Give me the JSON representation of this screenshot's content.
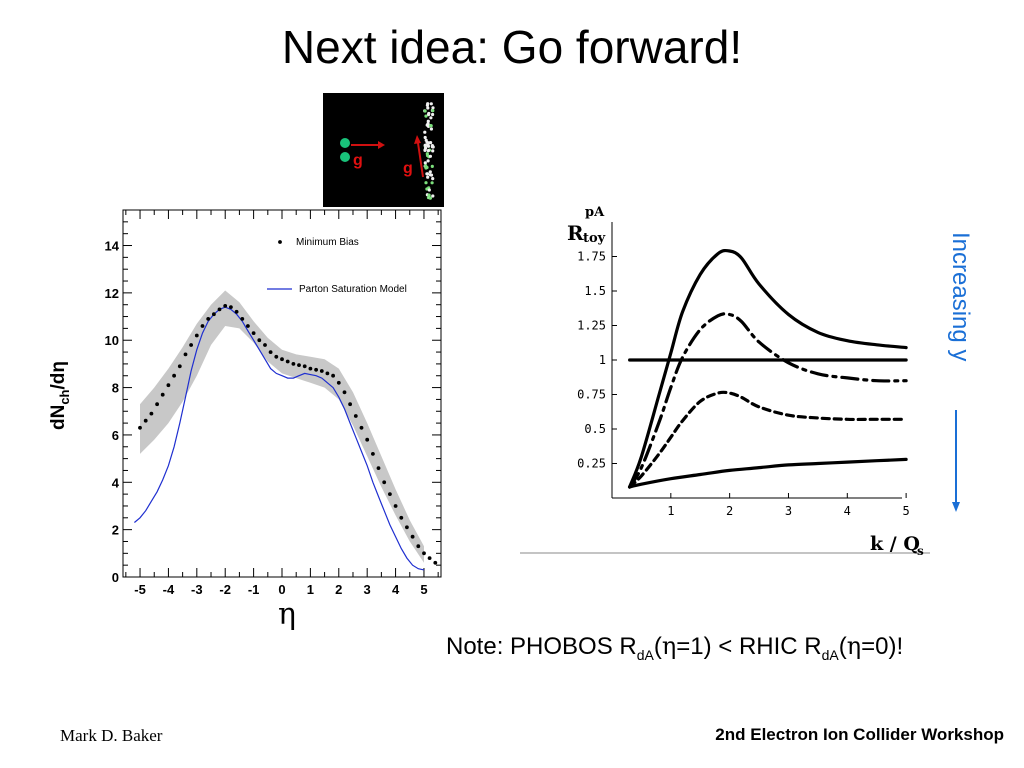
{
  "slide": {
    "title": "Next idea: Go forward!",
    "footer_left": "Mark D. Baker",
    "footer_right": "2nd Electron Ion Collider Workshop",
    "note": {
      "prefix": "Note: PHOBOS R",
      "sub1": "dA",
      "mid1": "(",
      "eta1": "η",
      "mid2": "=1) < RHIC R",
      "sub2": "dA",
      "mid3": "(",
      "eta2": "η",
      "mid4": "=0)!"
    },
    "increasing_label": "Increasing y",
    "diagram": {
      "label_left": "g",
      "label_right": "g"
    }
  },
  "chart_data": [
    {
      "type": "scatter",
      "xlabel": "η",
      "ylabel": "dN",
      "ylabel_sub": "ch",
      "ylabel_tail": "/dη",
      "xlim": [
        -5.6,
        5.6
      ],
      "ylim": [
        0,
        15.5
      ],
      "xticks": [
        "-5",
        "-4",
        "-3",
        "-2",
        "-1",
        "0",
        "1",
        "2",
        "3",
        "4",
        "5"
      ],
      "yticks": [
        "0",
        "2",
        "4",
        "6",
        "8",
        "10",
        "12",
        "14"
      ],
      "legend": [
        "Minimum Bias",
        "Parton Saturation Model"
      ],
      "legend_position": "top-right",
      "colors": {
        "points": "#000000",
        "model": "#1f2fd0",
        "band": "#c8c8c8"
      },
      "series": [
        {
          "name": "Minimum Bias",
          "x": [
            -5.0,
            -4.8,
            -4.6,
            -4.4,
            -4.2,
            -4.0,
            -3.8,
            -3.6,
            -3.4,
            -3.2,
            -3.0,
            -2.8,
            -2.6,
            -2.4,
            -2.2,
            -2.0,
            -1.8,
            -1.6,
            -1.4,
            -1.2,
            -1.0,
            -0.8,
            -0.6,
            -0.4,
            -0.2,
            0.0,
            0.2,
            0.4,
            0.6,
            0.8,
            1.0,
            1.2,
            1.4,
            1.6,
            1.8,
            2.0,
            2.2,
            2.4,
            2.6,
            2.8,
            3.0,
            3.2,
            3.4,
            3.6,
            3.8,
            4.0,
            4.2,
            4.4,
            4.6,
            4.8,
            5.0,
            5.2,
            5.4
          ],
          "y": [
            6.3,
            6.6,
            6.9,
            7.3,
            7.7,
            8.1,
            8.5,
            8.9,
            9.4,
            9.8,
            10.2,
            10.6,
            10.9,
            11.1,
            11.3,
            11.45,
            11.4,
            11.2,
            10.9,
            10.6,
            10.3,
            10.0,
            9.8,
            9.5,
            9.3,
            9.2,
            9.1,
            9.0,
            8.95,
            8.9,
            8.8,
            8.75,
            8.7,
            8.6,
            8.5,
            8.2,
            7.8,
            7.3,
            6.8,
            6.3,
            5.8,
            5.2,
            4.6,
            4.0,
            3.5,
            3.0,
            2.5,
            2.1,
            1.7,
            1.3,
            1.0,
            0.8,
            0.6
          ]
        },
        {
          "name": "Parton Saturation Model",
          "x": [
            -5.2,
            -5.0,
            -4.8,
            -4.6,
            -4.4,
            -4.2,
            -4.0,
            -3.8,
            -3.6,
            -3.4,
            -3.2,
            -3.0,
            -2.8,
            -2.6,
            -2.4,
            -2.2,
            -2.0,
            -1.8,
            -1.6,
            -1.4,
            -1.2,
            -1.0,
            -0.8,
            -0.6,
            -0.4,
            -0.2,
            0.0,
            0.2,
            0.4,
            0.6,
            0.8,
            1.0,
            1.2,
            1.4,
            1.6,
            1.8,
            2.0,
            2.2,
            2.4,
            2.6,
            2.8,
            3.0,
            3.2,
            3.4,
            3.6,
            3.8,
            4.0,
            4.2,
            4.4,
            4.6,
            4.8,
            5.0
          ],
          "y": [
            2.3,
            2.5,
            2.8,
            3.2,
            3.6,
            4.1,
            4.7,
            5.5,
            6.5,
            7.6,
            8.7,
            9.6,
            10.3,
            10.8,
            11.1,
            11.3,
            11.4,
            11.3,
            11.1,
            10.8,
            10.4,
            10.0,
            9.6,
            9.2,
            8.8,
            8.6,
            8.5,
            8.4,
            8.4,
            8.5,
            8.6,
            8.55,
            8.5,
            8.4,
            8.2,
            8.0,
            7.6,
            7.1,
            6.5,
            5.9,
            5.3,
            4.7,
            4.0,
            3.4,
            2.8,
            2.2,
            1.7,
            1.2,
            0.8,
            0.5,
            0.35,
            0.3
          ]
        }
      ],
      "band": {
        "x": [
          -5.0,
          -4.5,
          -4.0,
          -3.5,
          -3.0,
          -2.5,
          -2.0,
          -1.5,
          -1.0,
          -0.5,
          0.0,
          0.5,
          1.0,
          1.5,
          2.0,
          2.5,
          3.0,
          3.5,
          4.0,
          4.5,
          5.0
        ],
        "upper": [
          7.3,
          8.0,
          8.8,
          9.7,
          10.7,
          11.5,
          12.1,
          11.6,
          10.8,
          10.1,
          9.6,
          9.4,
          9.3,
          9.2,
          8.8,
          7.8,
          6.5,
          5.1,
          3.7,
          2.4,
          1.3
        ],
        "lower": [
          5.2,
          5.8,
          6.5,
          7.4,
          8.5,
          9.8,
          10.6,
          10.5,
          9.9,
          9.1,
          8.6,
          8.4,
          8.2,
          8.0,
          7.5,
          6.4,
          5.1,
          3.8,
          2.6,
          1.5,
          0.6
        ]
      }
    },
    {
      "type": "line",
      "ylabel": "R",
      "ylabel_sup": "pA",
      "ylabel_sub": "toy",
      "xlabel": "k / Q",
      "xlabel_sub": "s",
      "xlim": [
        0,
        5.1
      ],
      "ylim": [
        0,
        2
      ],
      "xticks": [
        "1",
        "2",
        "3",
        "4",
        "5"
      ],
      "yticks": [
        "0.25",
        "0.5",
        "0.75",
        "1",
        "1.25",
        "1.5",
        "1.75"
      ],
      "colors": {
        "curves": "#000000"
      },
      "series": [
        {
          "style": "solid",
          "x": [
            0.3,
            0.5,
            0.8,
            1.0,
            1.2,
            1.5,
            1.8,
            2.0,
            2.2,
            2.5,
            3.0,
            3.5,
            4.0,
            4.5,
            5.0
          ],
          "y": [
            0.08,
            0.3,
            0.75,
            1.05,
            1.35,
            1.62,
            1.77,
            1.79,
            1.74,
            1.55,
            1.33,
            1.2,
            1.14,
            1.11,
            1.09
          ]
        },
        {
          "style": "dash-dot",
          "x": [
            0.3,
            0.5,
            0.8,
            1.0,
            1.2,
            1.5,
            1.8,
            2.0,
            2.2,
            2.5,
            3.0,
            3.5,
            4.0,
            4.5,
            5.0
          ],
          "y": [
            0.08,
            0.22,
            0.55,
            0.8,
            1.02,
            1.22,
            1.32,
            1.33,
            1.28,
            1.13,
            0.98,
            0.9,
            0.87,
            0.85,
            0.85
          ]
        },
        {
          "style": "dashed",
          "x": [
            0.3,
            0.5,
            0.8,
            1.0,
            1.2,
            1.5,
            1.8,
            2.0,
            2.2,
            2.5,
            3.0,
            3.5,
            4.0,
            4.5,
            5.0
          ],
          "y": [
            0.08,
            0.16,
            0.32,
            0.44,
            0.56,
            0.7,
            0.76,
            0.76,
            0.73,
            0.66,
            0.6,
            0.58,
            0.57,
            0.57,
            0.57
          ]
        },
        {
          "style": "solid-flat",
          "x": [
            0.3,
            5.0
          ],
          "y": [
            1.0,
            1.0
          ]
        },
        {
          "style": "solid-low",
          "x": [
            0.3,
            0.5,
            1.0,
            1.5,
            2.0,
            2.5,
            3.0,
            3.5,
            4.0,
            4.5,
            5.0
          ],
          "y": [
            0.08,
            0.1,
            0.14,
            0.17,
            0.2,
            0.22,
            0.24,
            0.25,
            0.26,
            0.27,
            0.28
          ]
        }
      ]
    }
  ]
}
